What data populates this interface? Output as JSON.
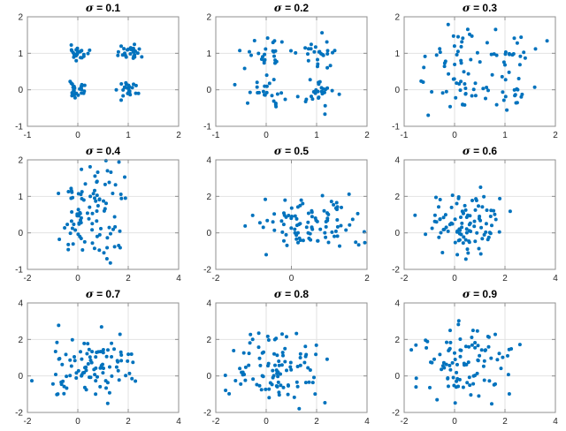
{
  "figure": {
    "background": "#ffffff",
    "marker_color": "#0072BD",
    "grid_color": "#e2e2e2",
    "axis_color": "#8f8f8f",
    "tick_label_color": "#262626",
    "title_color": "#000000"
  },
  "chart_data": [
    {
      "type": "scatter",
      "title": "σ = 0.1",
      "sigma": 0.1,
      "cluster_centers": [
        [
          0,
          0
        ],
        [
          0,
          1
        ],
        [
          1,
          0
        ],
        [
          1,
          1
        ]
      ],
      "points_per_cluster": 25,
      "seed": 11,
      "xlim": [
        -1,
        2
      ],
      "ylim": [
        -1,
        2
      ],
      "xticks": [
        -1,
        0,
        1,
        2
      ],
      "yticks": [
        -1,
        0,
        1,
        2
      ],
      "grid": true,
      "legend": "none"
    },
    {
      "type": "scatter",
      "title": "σ = 0.2",
      "sigma": 0.2,
      "cluster_centers": [
        [
          0,
          0
        ],
        [
          0,
          1
        ],
        [
          1,
          0
        ],
        [
          1,
          1
        ]
      ],
      "points_per_cluster": 25,
      "seed": 22,
      "xlim": [
        -1,
        2
      ],
      "ylim": [
        -1,
        2
      ],
      "xticks": [
        -1,
        0,
        1,
        2
      ],
      "yticks": [
        -1,
        0,
        1,
        2
      ],
      "grid": true,
      "legend": "none"
    },
    {
      "type": "scatter",
      "title": "σ = 0.3",
      "sigma": 0.3,
      "cluster_centers": [
        [
          0,
          0
        ],
        [
          0,
          1
        ],
        [
          1,
          0
        ],
        [
          1,
          1
        ]
      ],
      "points_per_cluster": 25,
      "seed": 33,
      "xlim": [
        -1,
        2
      ],
      "ylim": [
        -1,
        2
      ],
      "xticks": [
        -1,
        0,
        1,
        2
      ],
      "yticks": [
        -1,
        0,
        1,
        2
      ],
      "grid": true,
      "legend": "none"
    },
    {
      "type": "scatter",
      "title": "σ = 0.4",
      "sigma": 0.4,
      "cluster_centers": [
        [
          0,
          0
        ],
        [
          0,
          1
        ],
        [
          1,
          0
        ],
        [
          1,
          1
        ]
      ],
      "points_per_cluster": 25,
      "seed": 44,
      "xlim": [
        -2,
        4
      ],
      "ylim": [
        -1,
        2
      ],
      "xticks": [
        -2,
        0,
        2,
        4
      ],
      "yticks": [
        -1,
        0,
        1,
        2
      ],
      "grid": true,
      "legend": "none"
    },
    {
      "type": "scatter",
      "title": "σ = 0.5",
      "sigma": 0.5,
      "cluster_centers": [
        [
          0,
          0
        ],
        [
          0,
          1
        ],
        [
          1,
          0
        ],
        [
          1,
          1
        ]
      ],
      "points_per_cluster": 25,
      "seed": 55,
      "xlim": [
        -2,
        2
      ],
      "ylim": [
        -2,
        4
      ],
      "xticks": [
        -2,
        0,
        2
      ],
      "yticks": [
        -2,
        0,
        2,
        4
      ],
      "grid": true,
      "legend": "none"
    },
    {
      "type": "scatter",
      "title": "σ = 0.6",
      "sigma": 0.6,
      "cluster_centers": [
        [
          0,
          0
        ],
        [
          0,
          1
        ],
        [
          1,
          0
        ],
        [
          1,
          1
        ]
      ],
      "points_per_cluster": 25,
      "seed": 66,
      "xlim": [
        -2,
        4
      ],
      "ylim": [
        -2,
        4
      ],
      "xticks": [
        -2,
        0,
        2,
        4
      ],
      "yticks": [
        -2,
        0,
        2,
        4
      ],
      "grid": true,
      "legend": "none"
    },
    {
      "type": "scatter",
      "title": "σ = 0.7",
      "sigma": 0.7,
      "cluster_centers": [
        [
          0,
          0
        ],
        [
          0,
          1
        ],
        [
          1,
          0
        ],
        [
          1,
          1
        ]
      ],
      "points_per_cluster": 25,
      "seed": 77,
      "xlim": [
        -2,
        4
      ],
      "ylim": [
        -2,
        4
      ],
      "xticks": [
        -2,
        0,
        2,
        4
      ],
      "yticks": [
        -2,
        0,
        2,
        4
      ],
      "grid": true,
      "legend": "none"
    },
    {
      "type": "scatter",
      "title": "σ = 0.8",
      "sigma": 0.8,
      "cluster_centers": [
        [
          0,
          0
        ],
        [
          0,
          1
        ],
        [
          1,
          0
        ],
        [
          1,
          1
        ]
      ],
      "points_per_cluster": 25,
      "seed": 88,
      "xlim": [
        -2,
        4
      ],
      "ylim": [
        -2,
        4
      ],
      "xticks": [
        -2,
        0,
        2,
        4
      ],
      "yticks": [
        -2,
        0,
        2,
        4
      ],
      "grid": true,
      "legend": "none"
    },
    {
      "type": "scatter",
      "title": "σ = 0.9",
      "sigma": 0.9,
      "cluster_centers": [
        [
          0,
          0
        ],
        [
          0,
          1
        ],
        [
          1,
          0
        ],
        [
          1,
          1
        ]
      ],
      "points_per_cluster": 25,
      "seed": 99,
      "xlim": [
        -2,
        4
      ],
      "ylim": [
        -2,
        4
      ],
      "xticks": [
        -2,
        0,
        2,
        4
      ],
      "yticks": [
        -2,
        0,
        2,
        4
      ],
      "grid": true,
      "legend": "none"
    }
  ]
}
